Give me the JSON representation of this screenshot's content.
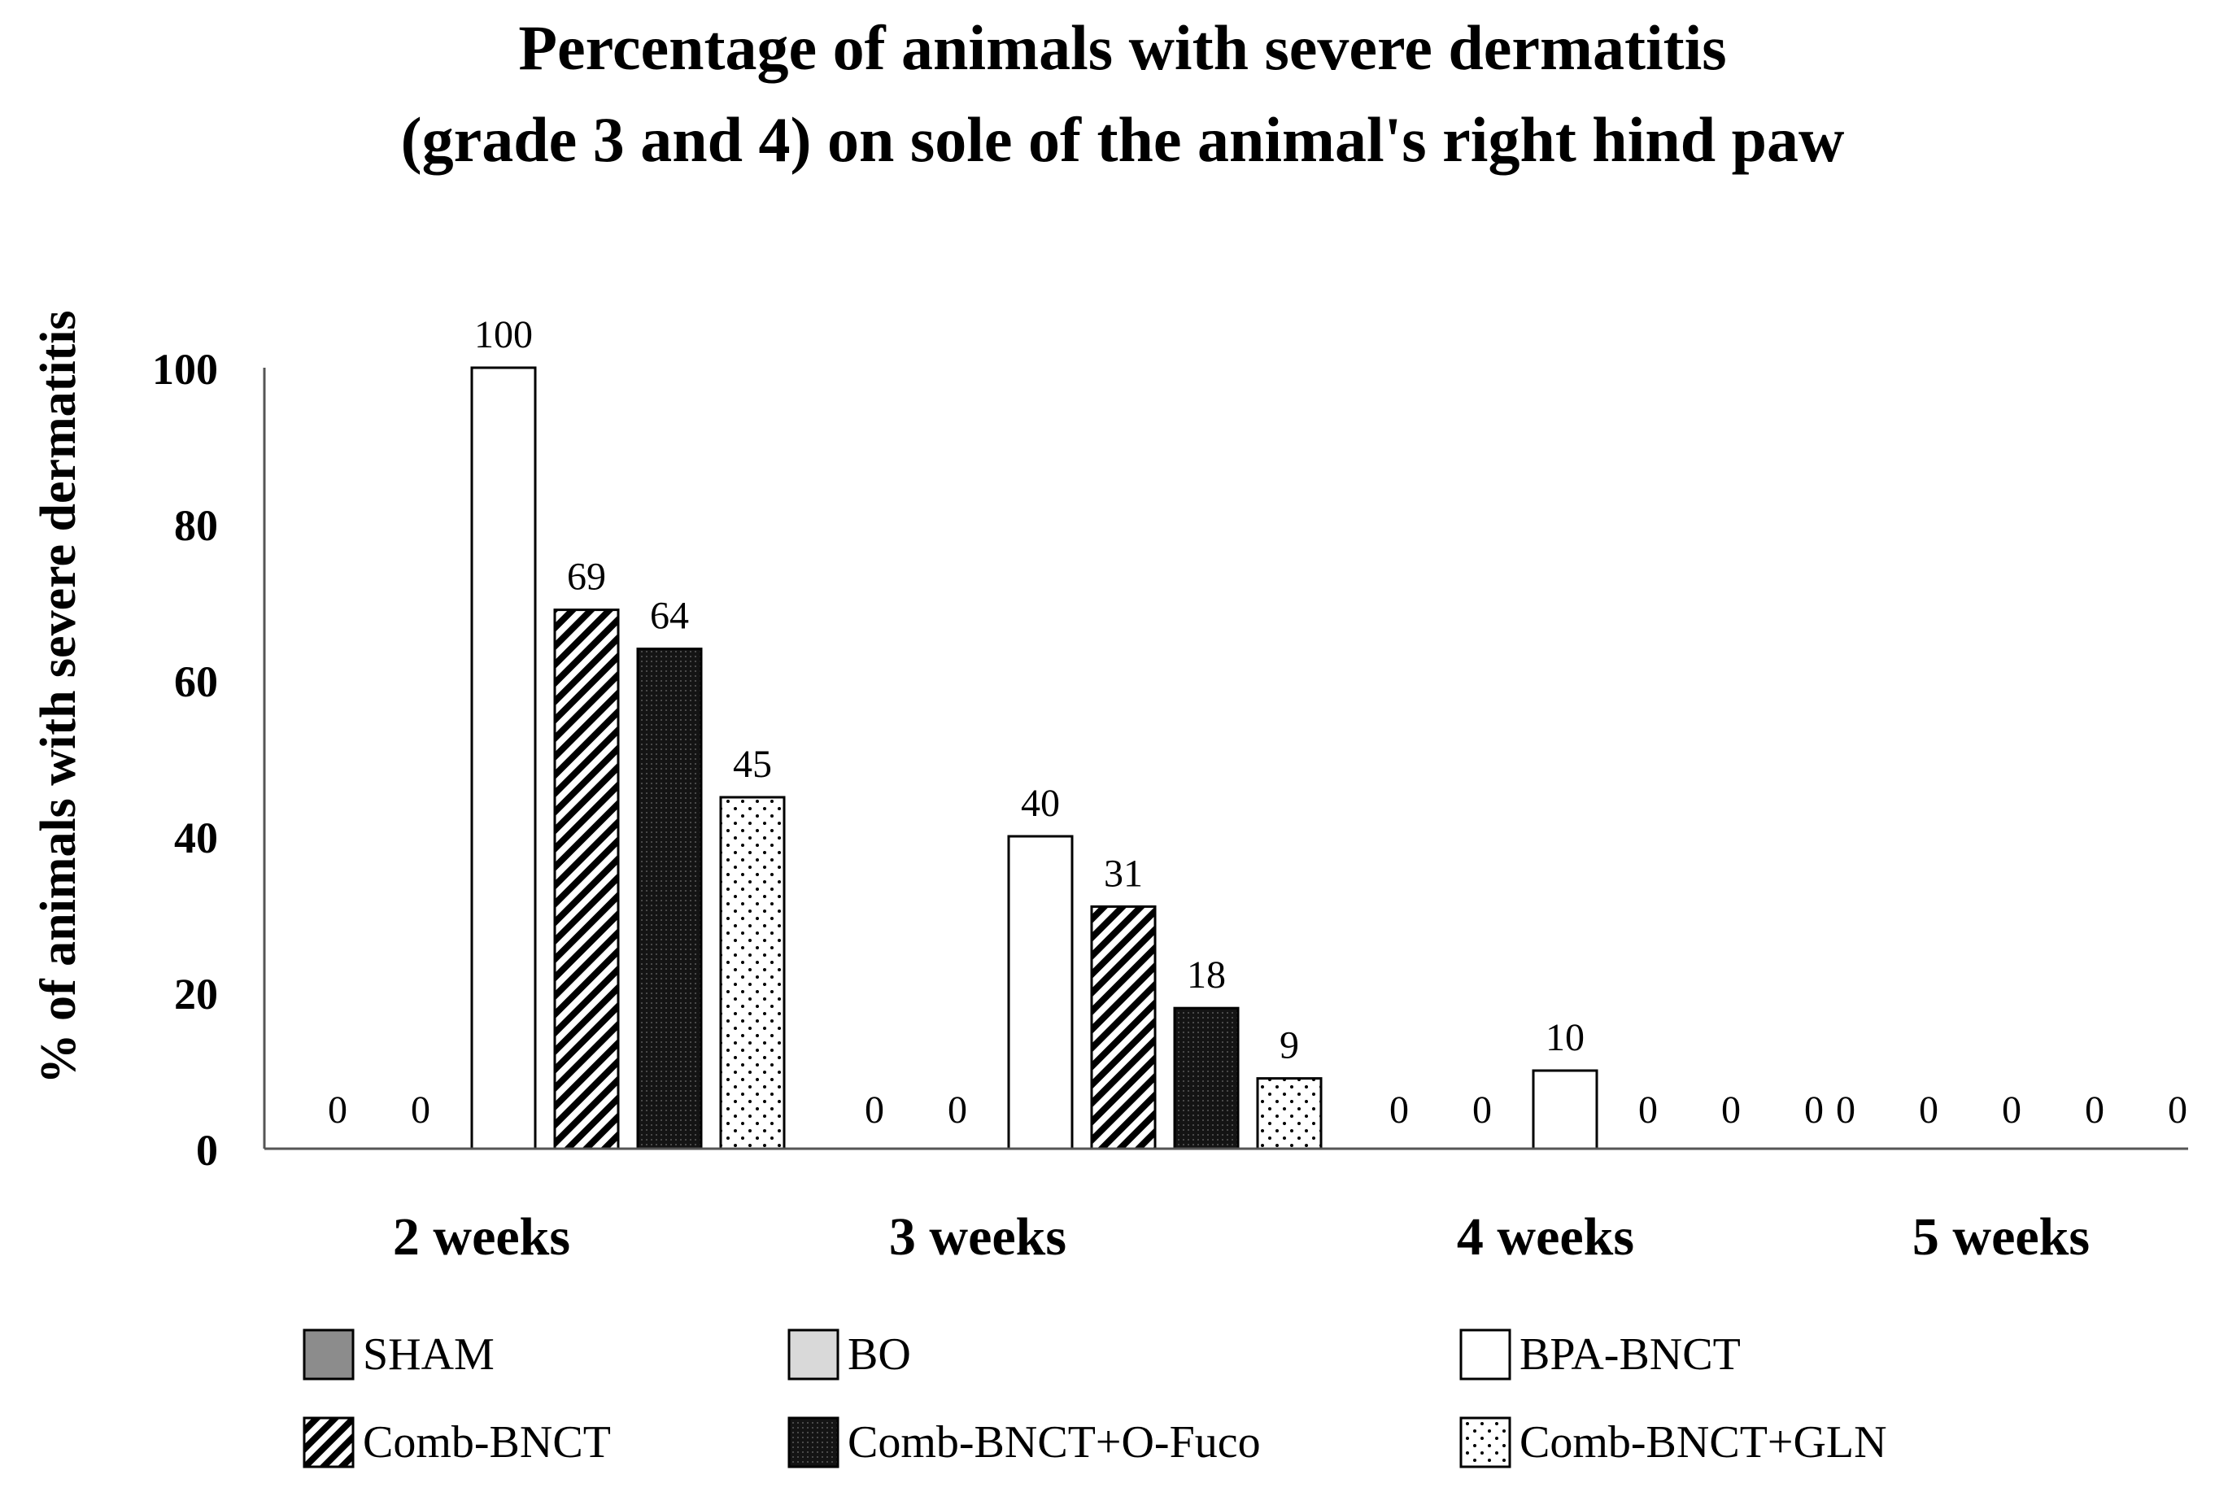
{
  "chart_data": {
    "type": "bar",
    "title": [
      "Percentage of animals with severe dermatitis",
      "(grade 3 and 4) on sole of the animal's right hind paw"
    ],
    "xlabel": "",
    "ylabel": "% of animals with severe dermatitis",
    "ylim": [
      0,
      100
    ],
    "yticks": [
      "0",
      "20",
      "40",
      "60",
      "80",
      "100"
    ],
    "categories": [
      "2 weeks",
      "3 weeks",
      "4 weeks",
      "5 weeks"
    ],
    "series": [
      {
        "name": "SHAM",
        "values": [
          0,
          0,
          0,
          0
        ],
        "pattern": "solid",
        "color": "#8c8c8c"
      },
      {
        "name": "BO",
        "values": [
          0,
          0,
          0,
          0
        ],
        "pattern": "solid",
        "color": "#d9d9d9"
      },
      {
        "name": "BPA-BNCT",
        "values": [
          100,
          40,
          10,
          0
        ],
        "pattern": "solid",
        "color": "#ffffff"
      },
      {
        "name": "Comb-BNCT",
        "values": [
          69,
          31,
          0,
          0
        ],
        "pattern": "diagonal-stripes",
        "color": "#000000"
      },
      {
        "name": "Comb-BNCT+O-Fuco",
        "values": [
          64,
          18,
          0,
          0
        ],
        "pattern": "dark-dots",
        "color": "#1a1a1a"
      },
      {
        "name": "Comb-BNCT+GLN",
        "values": [
          45,
          9,
          0,
          0
        ],
        "pattern": "sparse-dots",
        "color": "#000000"
      }
    ],
    "data_labels": [
      [
        "0",
        "0",
        "0",
        "0"
      ],
      [
        "0",
        "0",
        "0",
        "0"
      ],
      [
        "100",
        "40",
        "10",
        "0"
      ],
      [
        "69",
        "31",
        "0",
        "0"
      ],
      [
        "64",
        "18",
        "0",
        "0"
      ],
      [
        "45",
        "9",
        "0",
        "0"
      ]
    ],
    "grid": false,
    "legend_position": "bottom"
  }
}
